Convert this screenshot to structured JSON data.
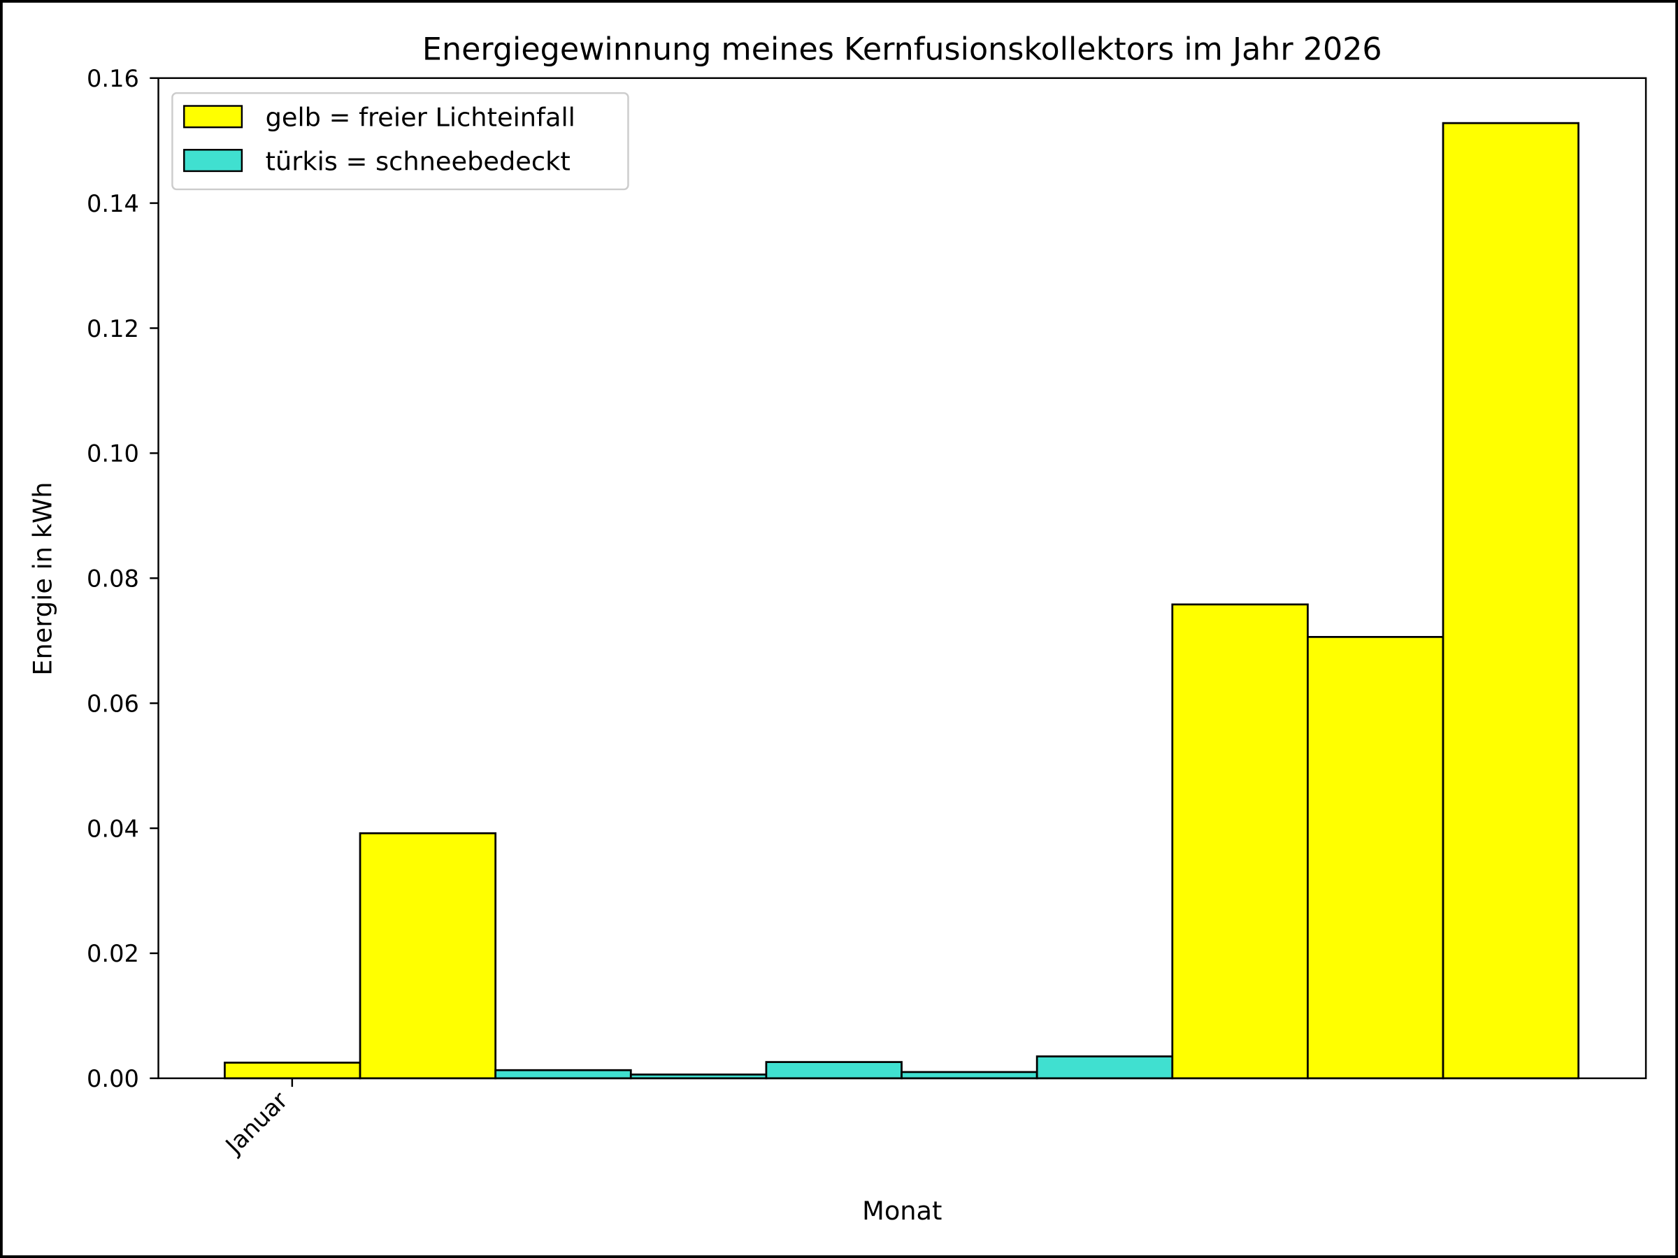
{
  "chart_data": {
    "type": "bar",
    "title": "Energiegewinnung meines Kernfusionskollektors im Jahr 2026",
    "xlabel": "Monat",
    "ylabel": "Energie in kWh",
    "ylim": [
      0,
      0.16
    ],
    "yticks": [
      "0.00",
      "0.02",
      "0.04",
      "0.06",
      "0.08",
      "0.10",
      "0.12",
      "0.14",
      "0.16"
    ],
    "xtick_labels": [
      "Januar"
    ],
    "values": [
      0.0025,
      0.0392,
      0.0013,
      0.0006,
      0.0026,
      0.001,
      0.0035,
      0.0758,
      0.0706,
      0.1528
    ],
    "bar_colors": [
      "#ffff00",
      "#ffff00",
      "#40e0d0",
      "#40e0d0",
      "#40e0d0",
      "#40e0d0",
      "#40e0d0",
      "#ffff00",
      "#ffff00",
      "#ffff00"
    ],
    "legend_position": "top-left",
    "legend": [
      {
        "label": "gelb = freier Lichteinfall",
        "color": "#ffff00"
      },
      {
        "label": "türkis = schneebedeckt",
        "color": "#40e0d0"
      }
    ],
    "grid": false
  }
}
